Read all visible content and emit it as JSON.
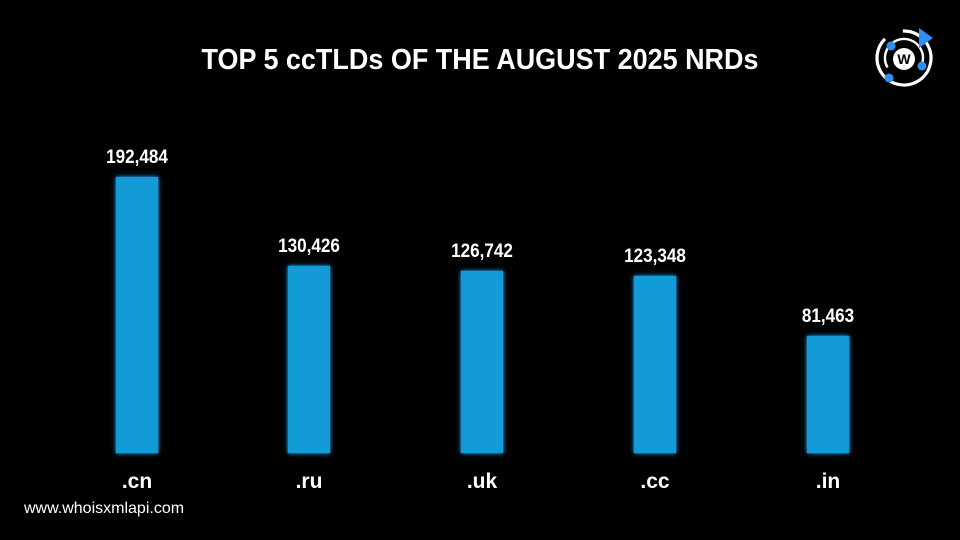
{
  "chart_data": {
    "type": "bar",
    "title": "TOP 5 ccTLDs OF THE AUGUST 2025 NRDs",
    "categories": [
      ".cn",
      ".ru",
      ".uk",
      ".cc",
      ".in"
    ],
    "values": [
      192484,
      130426,
      126742,
      123348,
      81463
    ],
    "value_labels": [
      "192,484",
      "130,426",
      "126,742",
      "123,348",
      "81,463"
    ],
    "xlabel": "",
    "ylabel": "",
    "ylim": [
      0,
      192484
    ],
    "grid": false,
    "legend": null,
    "bar_color": "#139bd8",
    "background": "#000000"
  },
  "header": {
    "title": "TOP 5 ccTLDs OF THE AUGUST 2025 NRDs"
  },
  "branding": {
    "logo_icon": "whoisxmlapi-logo-icon",
    "logo_letter": "W",
    "accent": "#2f8ff0",
    "footer_url": "www.whoisxmlapi.com"
  }
}
